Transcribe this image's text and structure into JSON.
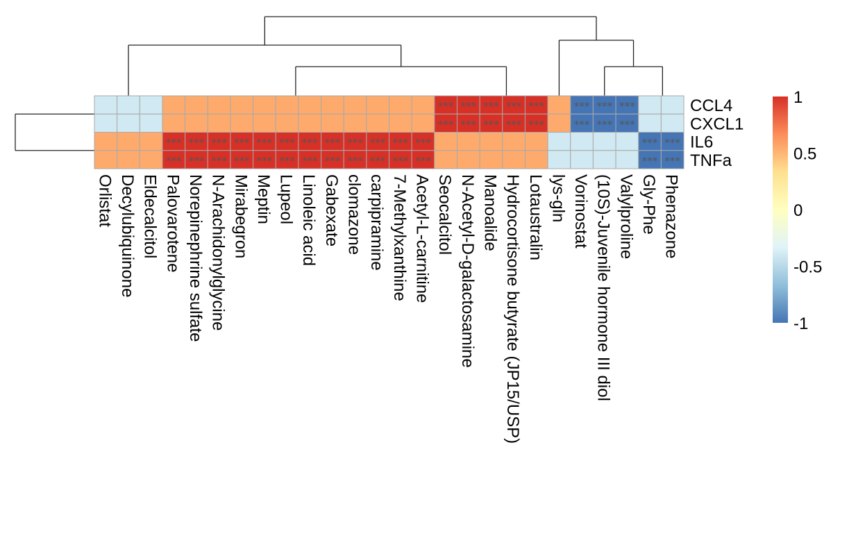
{
  "chart_data": {
    "type": "heatmap",
    "title": "",
    "rows": [
      "CCL4",
      "CXCL1",
      "IL6",
      "TNFa"
    ],
    "columns": [
      "Orlistat",
      "Decylubiquinone",
      "Eldecalcitol",
      "Palovarotene",
      "Norepinephrine sulfate",
      "N-Arachidonylglycine",
      "Mirabegron",
      "Meptin",
      "Lupeol",
      "Linoleic acid",
      "Gabexate",
      "clomazone",
      "carpipramine",
      "7-Methylxanthine",
      "Acetyl-L-carnitine",
      "Seocalcitol",
      "N-Acetyl-D-galactosamine",
      "Manoalide",
      "Hydrocortisone butyrate (JP15/USP)",
      "Lotaustralin",
      "lys-gln",
      "Vorinostat",
      "(10S)-Juvenile hormone III diol",
      "Valylproline",
      "Gly-Phe",
      "Phenazone"
    ],
    "values": [
      [
        -0.4,
        -0.4,
        -0.4,
        0.55,
        0.55,
        0.55,
        0.55,
        0.55,
        0.55,
        0.55,
        0.55,
        0.55,
        0.55,
        0.55,
        0.55,
        1.0,
        1.0,
        1.0,
        1.0,
        1.0,
        0.55,
        -1.0,
        -1.0,
        -1.0,
        -0.4,
        -0.4
      ],
      [
        -0.4,
        -0.4,
        -0.4,
        0.55,
        0.55,
        0.55,
        0.55,
        0.55,
        0.55,
        0.55,
        0.55,
        0.55,
        0.55,
        0.55,
        0.55,
        1.0,
        1.0,
        1.0,
        1.0,
        1.0,
        0.55,
        -1.0,
        -1.0,
        -1.0,
        -0.4,
        -0.4
      ],
      [
        0.55,
        0.55,
        0.55,
        1.0,
        1.0,
        1.0,
        1.0,
        1.0,
        1.0,
        1.0,
        1.0,
        1.0,
        1.0,
        1.0,
        1.0,
        0.55,
        0.55,
        0.55,
        0.55,
        0.55,
        -0.4,
        -0.4,
        -0.4,
        -0.4,
        -1.0,
        -1.0
      ],
      [
        0.55,
        0.55,
        0.55,
        1.0,
        1.0,
        1.0,
        1.0,
        1.0,
        1.0,
        1.0,
        1.0,
        1.0,
        1.0,
        1.0,
        1.0,
        0.55,
        0.55,
        0.55,
        0.55,
        0.55,
        -0.4,
        -0.4,
        -0.4,
        -0.4,
        -1.0,
        -1.0
      ]
    ],
    "significance": [
      [
        "",
        "",
        "",
        "",
        "",
        "",
        "",
        "",
        "",
        "",
        "",
        "",
        "",
        "",
        "",
        "***",
        "***",
        "***",
        "***",
        "***",
        "",
        "***",
        "***",
        "***",
        "",
        ""
      ],
      [
        "",
        "",
        "",
        "",
        "",
        "",
        "",
        "",
        "",
        "",
        "",
        "",
        "",
        "",
        "",
        "***",
        "***",
        "***",
        "***",
        "***",
        "",
        "***",
        "***",
        "***",
        "",
        ""
      ],
      [
        "",
        "",
        "",
        "***",
        "***",
        "***",
        "***",
        "***",
        "***",
        "***",
        "***",
        "***",
        "***",
        "***",
        "***",
        "",
        "",
        "",
        "",
        "",
        "",
        "",
        "",
        "",
        "***",
        "***"
      ],
      [
        "",
        "",
        "",
        "***",
        "***",
        "***",
        "***",
        "***",
        "***",
        "***",
        "***",
        "***",
        "***",
        "***",
        "***",
        "",
        "",
        "",
        "",
        "",
        "",
        "",
        "",
        "",
        "***",
        "***"
      ]
    ],
    "color_scale": {
      "min": -1,
      "max": 1,
      "stops": [
        "#4575B4",
        "#91BFDB",
        "#E0F3F8",
        "#FFFFBF",
        "#FEE090",
        "#FC8D59",
        "#D73027"
      ]
    },
    "legend": {
      "ticks": [
        1,
        0.5,
        0,
        -0.5,
        -1
      ],
      "tick_labels": [
        "1",
        "0.5",
        "0",
        "-0.5",
        "-1"
      ],
      "placement": "right"
    },
    "column_dendrogram": "((Orlistat,Decylubiquinone,Eldecalcitol),((Palovarotene..Acetyl-L-carnitine),(Seocalcitol..Lotaustralin))),(lys-gln,((Vorinostat,(10S)-Juvenile hormone III diol,Valylproline),(Gly-Phe,Phenazone)))",
    "row_dendrogram": "((CCL4,CXCL1),(IL6,TNFa))",
    "grid": true
  }
}
